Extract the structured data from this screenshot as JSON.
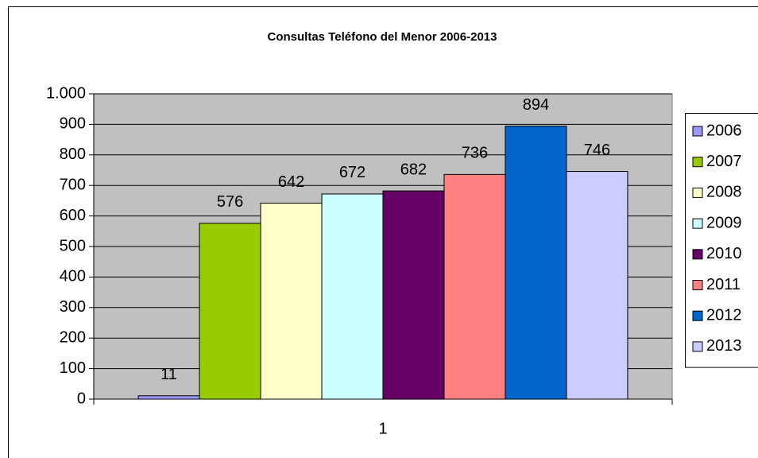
{
  "chart_data": {
    "type": "bar",
    "title": "Consultas Teléfono del Menor 2006-2013",
    "categories": [
      "1"
    ],
    "series": [
      {
        "name": "2006",
        "color": "#9999ff",
        "values": [
          11
        ]
      },
      {
        "name": "2007",
        "color": "#99cc00",
        "values": [
          576
        ]
      },
      {
        "name": "2008",
        "color": "#ffffcc",
        "values": [
          642
        ]
      },
      {
        "name": "2009",
        "color": "#ccffff",
        "values": [
          672
        ]
      },
      {
        "name": "2010",
        "color": "#660066",
        "values": [
          682
        ]
      },
      {
        "name": "2011",
        "color": "#ff8080",
        "values": [
          736
        ]
      },
      {
        "name": "2012",
        "color": "#0066cc",
        "values": [
          894
        ]
      },
      {
        "name": "2013",
        "color": "#ccccff",
        "values": [
          746
        ]
      }
    ],
    "ylim": [
      0,
      1000
    ],
    "yticks": [
      0,
      100,
      200,
      300,
      400,
      500,
      600,
      700,
      800,
      900,
      {
        "value": 1000,
        "label": "1.000"
      }
    ],
    "grid": true,
    "legend": "right",
    "plot_background": "#c0c0c0"
  }
}
